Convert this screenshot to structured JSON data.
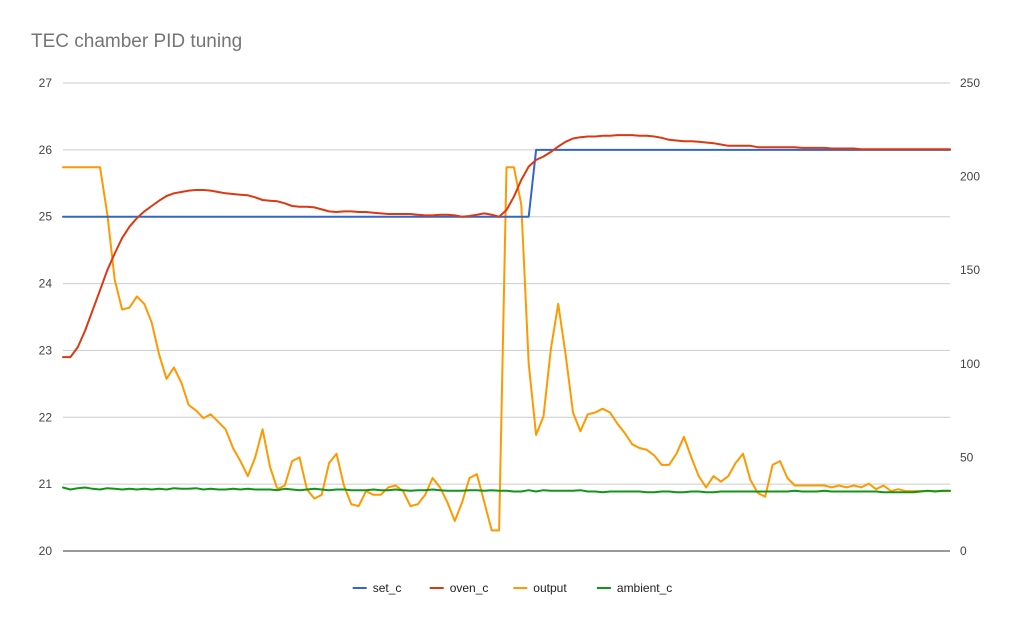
{
  "chart_data": {
    "type": "line",
    "title": "TEC chamber PID tuning",
    "xlabel": "",
    "ylabel_left": "",
    "ylabel_right": "",
    "ylim_left": [
      20,
      27
    ],
    "ylim_right": [
      0,
      250
    ],
    "yticks_left": [
      "20",
      "21",
      "22",
      "23",
      "24",
      "25",
      "26",
      "27"
    ],
    "yticks_right": [
      "0",
      "50",
      "100",
      "150",
      "200",
      "250"
    ],
    "grid": true,
    "legend_position": "bottom",
    "n_samples": 121,
    "series": [
      {
        "name": "set_c",
        "axis": "left",
        "color": "#3366cc",
        "values": [
          25,
          25,
          25,
          25,
          25,
          25,
          25,
          25,
          25,
          25,
          25,
          25,
          25,
          25,
          25,
          25,
          25,
          25,
          25,
          25,
          25,
          25,
          25,
          25,
          25,
          25,
          25,
          25,
          25,
          25,
          25,
          25,
          25,
          25,
          25,
          25,
          25,
          25,
          25,
          25,
          25,
          25,
          25,
          25,
          25,
          25,
          25,
          25,
          25,
          25,
          25,
          25,
          25,
          25,
          25,
          25,
          25,
          25,
          25,
          25,
          25,
          25,
          25,
          25,
          26,
          26,
          26,
          26,
          26,
          26,
          26,
          26,
          26,
          26,
          26,
          26,
          26,
          26,
          26,
          26,
          26,
          26,
          26,
          26,
          26,
          26,
          26,
          26,
          26,
          26,
          26,
          26,
          26,
          26,
          26,
          26,
          26,
          26,
          26,
          26,
          26,
          26,
          26,
          26,
          26,
          26,
          26,
          26,
          26,
          26,
          26,
          26,
          26,
          26,
          26,
          26,
          26,
          26,
          26,
          26,
          26
        ]
      },
      {
        "name": "oven_c",
        "axis": "left",
        "color": "#dc3912",
        "values": [
          22.9,
          22.9,
          23.05,
          23.3,
          23.6,
          23.9,
          24.2,
          24.45,
          24.68,
          24.85,
          24.98,
          25.08,
          25.16,
          25.24,
          25.31,
          25.35,
          25.37,
          25.39,
          25.4,
          25.4,
          25.39,
          25.37,
          25.35,
          25.34,
          25.33,
          25.32,
          25.29,
          25.25,
          25.24,
          25.23,
          25.2,
          25.16,
          25.15,
          25.15,
          25.14,
          25.11,
          25.08,
          25.07,
          25.08,
          25.08,
          25.07,
          25.07,
          25.06,
          25.05,
          25.04,
          25.04,
          25.04,
          25.04,
          25.03,
          25.02,
          25.02,
          25.03,
          25.03,
          25.02,
          25.0,
          25.01,
          25.03,
          25.05,
          25.03,
          25.0,
          25.1,
          25.3,
          25.55,
          25.75,
          25.85,
          25.9,
          25.97,
          26.05,
          26.12,
          26.17,
          26.19,
          26.2,
          26.2,
          26.21,
          26.21,
          26.22,
          26.22,
          26.22,
          26.21,
          26.21,
          26.2,
          26.18,
          26.15,
          26.14,
          26.13,
          26.13,
          26.12,
          26.11,
          26.1,
          26.08,
          26.06,
          26.06,
          26.06,
          26.06,
          26.04,
          26.04,
          26.04,
          26.04,
          26.04,
          26.04,
          26.03,
          26.03,
          26.03,
          26.03,
          26.02,
          26.02,
          26.02,
          26.02,
          26.01,
          26.01,
          26.01,
          26.01,
          26.01,
          26.01,
          26.01,
          26.01,
          26.01,
          26.01,
          26.01,
          26.01,
          26.01
        ]
      },
      {
        "name": "output",
        "axis": "right",
        "color": "#ff9900",
        "values": [
          205,
          205,
          205,
          205,
          205,
          205,
          180,
          145,
          129,
          130,
          136,
          132,
          122,
          105,
          92,
          98,
          90,
          78,
          75,
          71,
          73,
          69,
          65,
          55,
          48,
          40,
          50,
          65,
          45,
          33,
          35,
          48,
          50,
          33,
          28,
          30,
          47,
          52,
          35,
          25,
          24,
          32,
          30,
          30,
          34,
          35,
          32,
          24,
          25,
          30,
          39,
          34,
          26,
          16,
          26,
          39,
          41,
          26,
          11,
          11,
          205,
          205,
          185,
          100,
          62,
          72,
          108,
          132,
          105,
          74,
          64,
          73,
          74,
          76,
          74,
          68,
          63,
          57,
          55,
          54,
          51,
          46,
          46,
          52,
          61,
          50,
          40,
          34,
          40,
          37,
          40,
          47,
          52,
          38,
          31,
          29,
          46,
          48,
          39,
          35,
          35,
          35,
          35,
          35,
          34,
          35,
          34,
          35,
          34,
          36,
          33,
          35,
          32,
          33,
          32,
          32,
          32,
          32,
          32,
          32,
          32
        ]
      },
      {
        "name": "ambient_c",
        "axis": "left",
        "color": "#109618",
        "values": [
          20.95,
          20.92,
          20.94,
          20.95,
          20.93,
          20.92,
          20.94,
          20.93,
          20.92,
          20.93,
          20.92,
          20.93,
          20.92,
          20.93,
          20.92,
          20.94,
          20.93,
          20.93,
          20.94,
          20.92,
          20.93,
          20.92,
          20.92,
          20.93,
          20.92,
          20.93,
          20.92,
          20.92,
          20.92,
          20.91,
          20.93,
          20.92,
          20.91,
          20.92,
          20.93,
          20.92,
          20.91,
          20.92,
          20.92,
          20.91,
          20.91,
          20.91,
          20.92,
          20.91,
          20.91,
          20.92,
          20.91,
          20.9,
          20.91,
          20.91,
          20.92,
          20.91,
          20.9,
          20.9,
          20.9,
          20.91,
          20.91,
          20.9,
          20.91,
          20.9,
          20.9,
          20.89,
          20.89,
          20.91,
          20.89,
          20.91,
          20.9,
          20.9,
          20.9,
          20.9,
          20.91,
          20.89,
          20.89,
          20.88,
          20.89,
          20.89,
          20.89,
          20.89,
          20.89,
          20.88,
          20.88,
          20.89,
          20.89,
          20.88,
          20.88,
          20.89,
          20.89,
          20.88,
          20.88,
          20.89,
          20.89,
          20.89,
          20.89,
          20.89,
          20.89,
          20.89,
          20.89,
          20.89,
          20.89,
          20.9,
          20.89,
          20.89,
          20.89,
          20.9,
          20.89,
          20.89,
          20.89,
          20.89,
          20.89,
          20.89,
          20.89,
          20.88,
          20.88,
          20.88,
          20.88,
          20.88,
          20.89,
          20.9,
          20.89,
          20.9,
          20.9
        ]
      }
    ]
  }
}
